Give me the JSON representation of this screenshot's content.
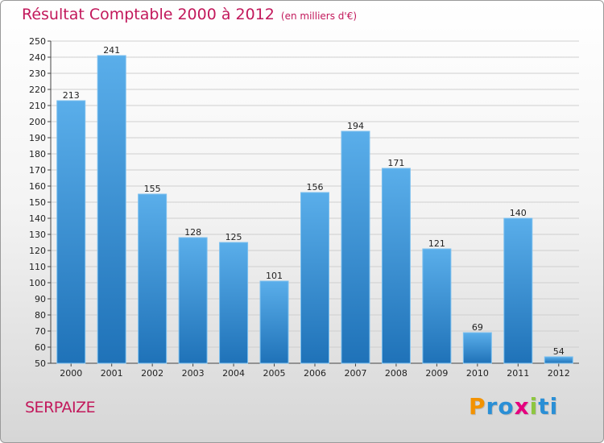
{
  "header": {
    "title": "Résultat Comptable 2000 à 2012",
    "subtitle": "(en milliers d'€)"
  },
  "footer": {
    "entity": "SERPAIZE",
    "logo_letters": [
      "P",
      "r",
      "o",
      "x",
      "i",
      "t",
      "i"
    ],
    "logo_colors": [
      "#f39200",
      "#2a8fd6",
      "#2a8fd6",
      "#e5007e",
      "#8dc63f",
      "#2a8fd6",
      "#2a8fd6"
    ]
  },
  "colors": {
    "bar": "#3a97dc",
    "bar_dark": "#1f6fb4",
    "grid": "#cfcfcf",
    "title": "#c2185b"
  },
  "chart_data": {
    "type": "bar",
    "title": "Résultat Comptable 2000 à 2012",
    "subtitle": "(en milliers d'€)",
    "xlabel": "",
    "ylabel": "",
    "categories": [
      "2000",
      "2001",
      "2002",
      "2003",
      "2004",
      "2005",
      "2006",
      "2007",
      "2008",
      "2009",
      "2010",
      "2011",
      "2012"
    ],
    "values": [
      213,
      241,
      155,
      128,
      125,
      101,
      156,
      194,
      171,
      121,
      69,
      140,
      54
    ],
    "ylim": [
      50,
      250
    ],
    "ytick_step": 10,
    "grid": true
  }
}
